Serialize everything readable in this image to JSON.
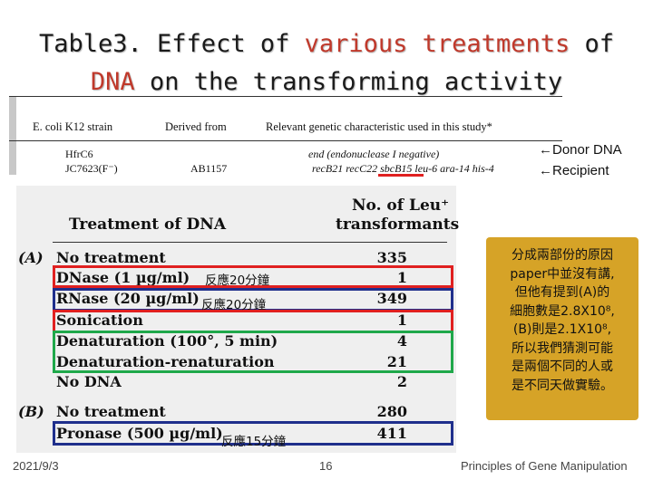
{
  "title": {
    "line1_a": "Table3. Effect of ",
    "line1_hl": "various treatments",
    "line1_b": " of",
    "line2_hl": "DNA",
    "line2_b": " on the transforming activity"
  },
  "strain_table": {
    "headers": [
      "E. coli K12 strain",
      "Derived from",
      "Relevant genetic characteristic used in this study*"
    ],
    "rows": [
      {
        "strain": "HfrC6",
        "derived": "",
        "char": "end (endonuclease I negative)"
      },
      {
        "strain": "JC7623(F⁻)",
        "derived": "AB1157",
        "char": "recB21 recC22 sbcB15 leu-6 ara-14 his-4"
      }
    ]
  },
  "notes": {
    "donor": "←Donor DNA",
    "recipient": "←Recipient"
  },
  "treatment_table": {
    "col1": "Treatment of DNA",
    "col2_line1": "No. of Leu⁺",
    "col2_line2": "transformants",
    "rows": [
      {
        "group": "(A)",
        "label": "No treatment",
        "value": "335"
      },
      {
        "group": "",
        "label": "DNase (1 µg/ml)",
        "value": "1"
      },
      {
        "group": "",
        "label": "RNase (20 µg/ml)",
        "value": "349"
      },
      {
        "group": "",
        "label": "Sonication",
        "value": "1"
      },
      {
        "group": "",
        "label": "Denaturation (100°, 5 min)",
        "value": "4"
      },
      {
        "group": "",
        "label": "Denaturation-renaturation",
        "value": "21"
      },
      {
        "group": "",
        "label": "No DNA",
        "value": "2"
      },
      {
        "group": "(B)",
        "label": "No treatment",
        "value": "280"
      },
      {
        "group": "",
        "label": "Pronase (500 µg/ml)",
        "value": "411"
      }
    ]
  },
  "annotations": {
    "dnase": "反應20分鐘",
    "rnase": "反應20分鐘",
    "pronase": "反應15分鐘"
  },
  "callout": {
    "l1": "分成兩部份的原因",
    "l2": "paper中並沒有講,",
    "l3": "但他有提到(A)的",
    "l4": "細胞數是2.8X10⁸,",
    "l5": "(B)則是2.1X10⁸,",
    "l6": "所以我們猜測可能",
    "l7": "是兩個不同的人或",
    "l8": "是不同天做實驗。"
  },
  "footer": {
    "date": "2021/9/3",
    "page": "16",
    "course": "Principles of Gene Manipulation"
  },
  "colors": {
    "red_box": "#e02020",
    "blue_box": "#1f2f8c",
    "green_box": "#1fa84a",
    "callout_bg": "#d6a327",
    "accent": "#c0392b"
  }
}
